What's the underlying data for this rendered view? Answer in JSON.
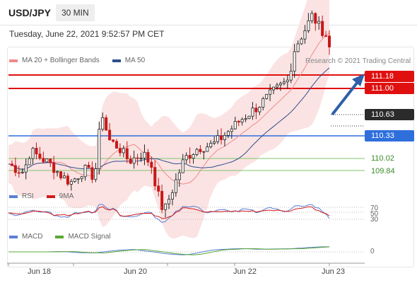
{
  "header": {
    "pair": "USD/JPY",
    "timeframe": "30 MIN",
    "datetime": "Tuesday, June 22, 2021 9:52:57 PM CET"
  },
  "legend": {
    "ma20_label": "MA 20 + Bollinger Bands",
    "ma50_label": "MA 50",
    "credit": "Research © 2021 Trading Central",
    "colors": {
      "ma20": "#f08a8a",
      "ma50": "#2e4f8c"
    }
  },
  "levels": {
    "r2": "111.18",
    "r1": "111.00",
    "current": "110.63",
    "pivot": "110.33",
    "s1": "110.02",
    "s2": "109.84"
  },
  "rsi": {
    "label": "RSI",
    "ma_label": "9MA",
    "ticks": [
      "70",
      "50",
      "30"
    ],
    "colors": {
      "rsi": "#5b7fd6",
      "ma": "#d21a1a"
    }
  },
  "macd": {
    "label": "MACD",
    "signal_label": "MACD Signal",
    "tick": "0",
    "colors": {
      "macd": "#5b7fd6",
      "signal": "#5aa832"
    }
  },
  "xaxis": [
    "Jun 18",
    "Jun 20",
    "Jun 22",
    "Jun 23"
  ],
  "colors": {
    "resistance": "#e01010",
    "pivot": "#2e6fdc",
    "support": "#7cc46a",
    "up": "#222222",
    "down": "#c81818"
  }
}
